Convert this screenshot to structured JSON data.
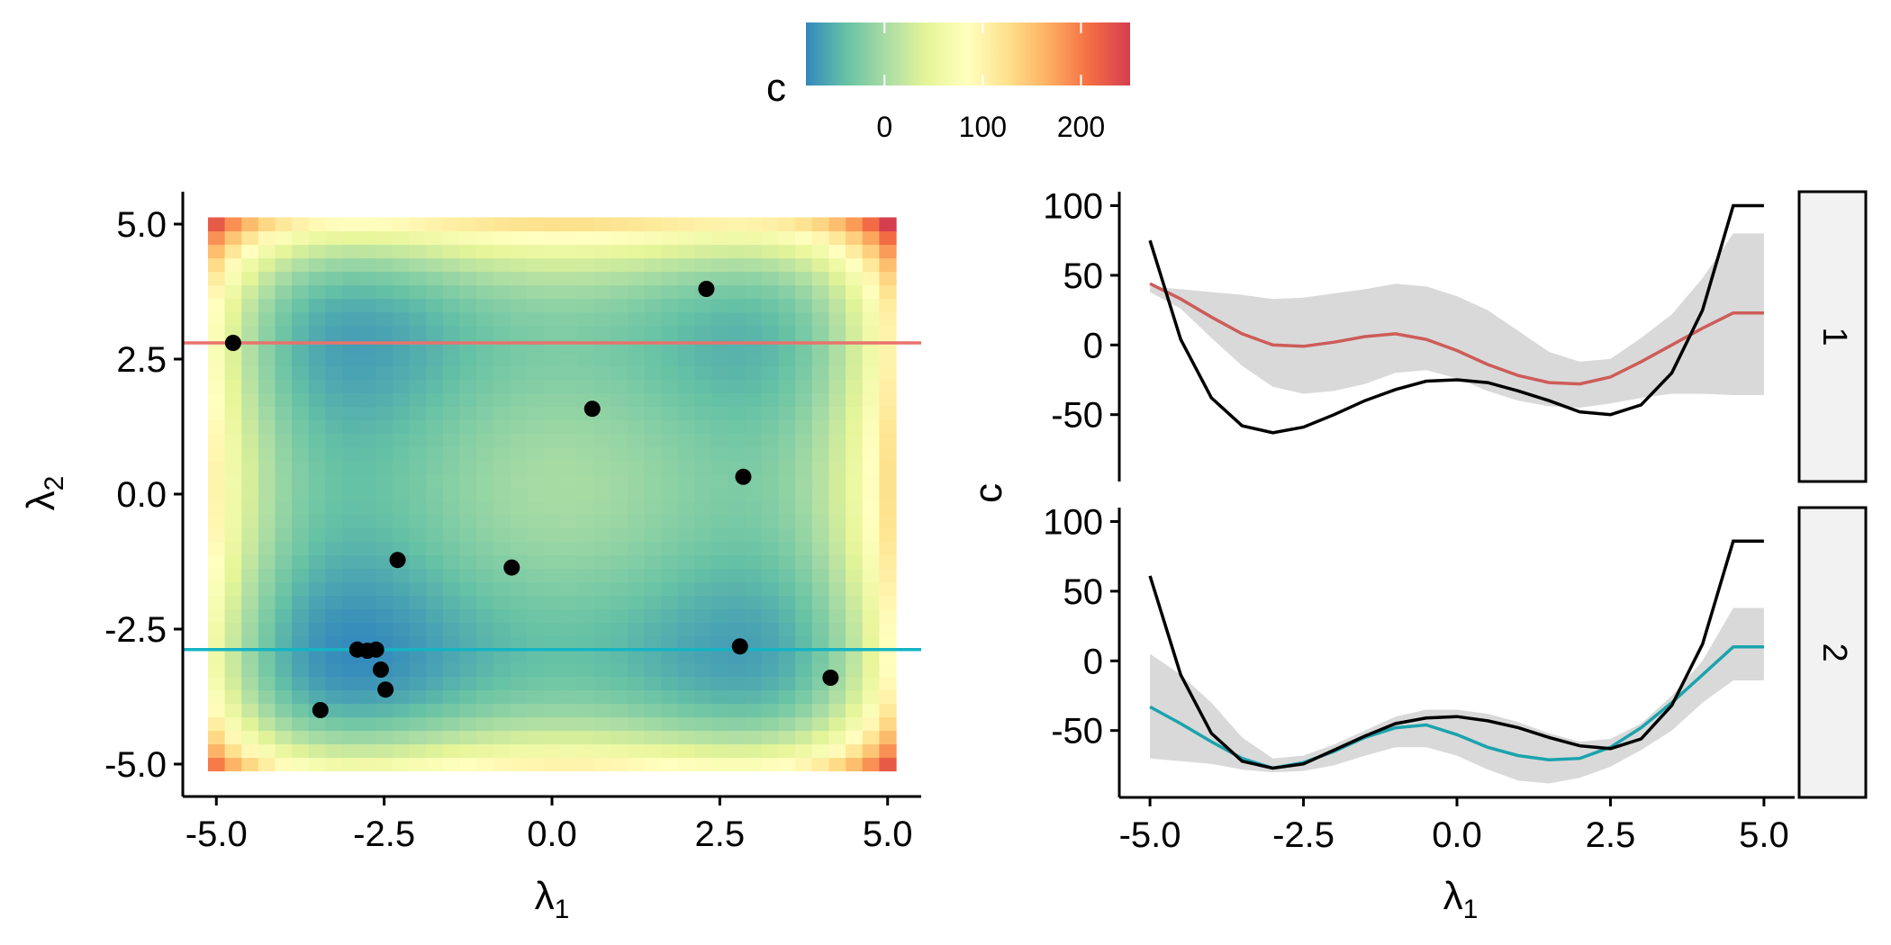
{
  "legend": {
    "title": "c",
    "breaks": [
      0,
      100,
      200
    ],
    "range": [
      -80,
      250
    ],
    "palette": [
      "#3288bd",
      "#66c2a5",
      "#abdda4",
      "#e6f598",
      "#ffffbf",
      "#fee08b",
      "#fdae61",
      "#f46d43",
      "#d53e4f"
    ]
  },
  "chart_data": [
    {
      "type": "heatmap",
      "title": "",
      "xlabel": "λ",
      "xlabel_sub": "1",
      "ylabel": "λ",
      "ylabel_sub": "2",
      "xlim": [
        -5.5,
        5.5
      ],
      "ylim": [
        -5.6,
        5.6
      ],
      "xticks": [
        -5.0,
        -2.5,
        0.0,
        2.5,
        5.0
      ],
      "yticks": [
        -5.0,
        -2.5,
        0.0,
        2.5,
        5.0
      ],
      "tick_labels_x": [
        "-5.0",
        "-2.5",
        "0.0",
        "2.5",
        "5.0"
      ],
      "tick_labels_y": [
        "-5.0",
        "-2.5",
        "0.0",
        "2.5",
        "5.0"
      ],
      "surface": "styblinski-tang 2D: c = 0.5 * sum(λ^4 - 16λ^2 + 5λ) over λ1, λ2",
      "grid_range": [
        -5,
        5
      ],
      "grid_cells": 41,
      "points": [
        {
          "x": -4.75,
          "y": 2.8
        },
        {
          "x": 2.3,
          "y": 3.8
        },
        {
          "x": 0.6,
          "y": 1.58
        },
        {
          "x": 2.85,
          "y": 0.32
        },
        {
          "x": -2.3,
          "y": -1.22
        },
        {
          "x": -0.6,
          "y": -1.36
        },
        {
          "x": -2.9,
          "y": -2.88
        },
        {
          "x": -2.75,
          "y": -2.9
        },
        {
          "x": -2.62,
          "y": -2.88
        },
        {
          "x": -2.55,
          "y": -3.25
        },
        {
          "x": -2.48,
          "y": -3.62
        },
        {
          "x": -3.45,
          "y": -4.0
        },
        {
          "x": 2.8,
          "y": -2.82
        },
        {
          "x": 4.15,
          "y": -3.4
        }
      ],
      "hlines": [
        {
          "y": 2.8,
          "color": "#e8736c"
        },
        {
          "y": -2.88,
          "color": "#14b4c4"
        }
      ]
    },
    {
      "type": "line",
      "facet": "1",
      "xlabel": "λ",
      "xlabel_sub": "1",
      "ylabel": "c",
      "xlim": [
        -5.5,
        5.5
      ],
      "ylim": [
        -98,
        110
      ],
      "yticks": [
        -50,
        0,
        50,
        100
      ],
      "tick_labels_y": [
        "-50",
        "0",
        "50",
        "100"
      ],
      "x": [
        -5.0,
        -4.5,
        -4.0,
        -3.5,
        -3.0,
        -2.5,
        -2.0,
        -1.5,
        -1.0,
        -0.5,
        0.0,
        0.5,
        1.0,
        1.5,
        2.0,
        2.5,
        3.0,
        3.5,
        4.0,
        4.5,
        5.0
      ],
      "series": [
        {
          "color": "#cd5c58",
          "values": [
            44,
            33,
            20,
            8,
            0,
            -1,
            2,
            6,
            8,
            4,
            -4,
            -14,
            -22,
            -27,
            -28,
            -23,
            -12,
            0,
            12,
            23,
            23
          ]
        },
        {
          "color": "#000000",
          "values": [
            75,
            4,
            -38,
            -58,
            -63,
            -59,
            -50,
            -40,
            -32,
            -26,
            -25,
            -27,
            -33,
            -40,
            -48,
            -50,
            -43,
            -20,
            25,
            100,
            100
          ]
        }
      ],
      "band": {
        "upper": [
          42,
          40,
          38,
          36,
          33,
          34,
          37,
          40,
          44,
          42,
          35,
          25,
          10,
          -5,
          -12,
          -10,
          5,
          22,
          48,
          80,
          80
        ],
        "lower": [
          38,
          26,
          5,
          -15,
          -30,
          -35,
          -33,
          -28,
          -20,
          -18,
          -24,
          -33,
          -40,
          -44,
          -45,
          -42,
          -38,
          -35,
          -35,
          -36,
          -36
        ]
      }
    },
    {
      "type": "line",
      "facet": "2",
      "xlabel": "λ",
      "xlabel_sub": "1",
      "ylabel": "c",
      "xlim": [
        -5.5,
        5.5
      ],
      "ylim": [
        -98,
        110
      ],
      "xticks": [
        -5.0,
        -2.5,
        0.0,
        2.5,
        5.0
      ],
      "tick_labels_x": [
        "-5.0",
        "-2.5",
        "0.0",
        "2.5",
        "5.0"
      ],
      "yticks": [
        -50,
        0,
        50,
        100
      ],
      "tick_labels_y": [
        "-50",
        "0",
        "50",
        "100"
      ],
      "x": [
        -5.0,
        -4.5,
        -4.0,
        -3.5,
        -3.0,
        -2.5,
        -2.0,
        -1.5,
        -1.0,
        -0.5,
        0.0,
        0.5,
        1.0,
        1.5,
        2.0,
        2.5,
        3.0,
        3.5,
        4.0,
        4.5,
        5.0
      ],
      "series": [
        {
          "color": "#1aa3ad",
          "values": [
            -33,
            -45,
            -58,
            -70,
            -77,
            -73,
            -65,
            -55,
            -48,
            -46,
            -53,
            -62,
            -68,
            -71,
            -70,
            -62,
            -48,
            -30,
            -10,
            10,
            10
          ]
        },
        {
          "color": "#000000",
          "values": [
            61,
            -10,
            -52,
            -72,
            -77,
            -74,
            -64,
            -54,
            -45,
            -41,
            -40,
            -43,
            -48,
            -55,
            -61,
            -63,
            -56,
            -32,
            12,
            86,
            86
          ]
        }
      ],
      "band": {
        "upper": [
          5,
          -10,
          -30,
          -55,
          -70,
          -68,
          -60,
          -50,
          -40,
          -35,
          -35,
          -38,
          -44,
          -52,
          -58,
          -56,
          -45,
          -25,
          0,
          38,
          38
        ],
        "lower": [
          -70,
          -72,
          -74,
          -78,
          -80,
          -79,
          -75,
          -68,
          -62,
          -62,
          -68,
          -78,
          -86,
          -88,
          -84,
          -76,
          -64,
          -50,
          -30,
          -14,
          -14
        ]
      }
    }
  ]
}
